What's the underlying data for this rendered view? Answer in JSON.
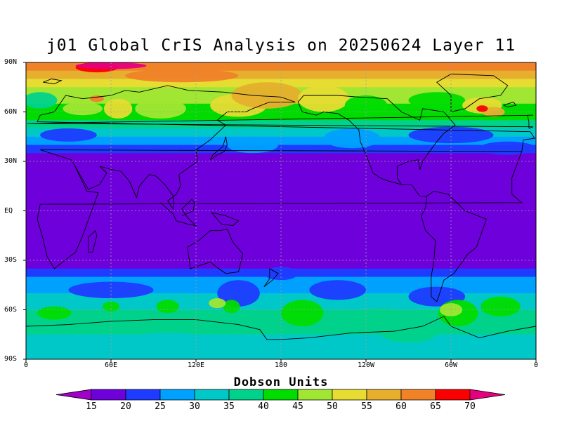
{
  "title": "j01 Global CrIS Analysis on 20250624 Layer 11",
  "lat_labels": [
    "90N",
    "60N",
    "30N",
    "EQ",
    "30S",
    "60S",
    "90S"
  ],
  "lon_labels": [
    "0",
    "60E",
    "120E",
    "180",
    "120W",
    "60W",
    "0"
  ],
  "colorbar": {
    "title": "Dobson Units",
    "ticks": [
      "15",
      "20",
      "25",
      "30",
      "35",
      "40",
      "45",
      "50",
      "55",
      "60",
      "65",
      "70"
    ],
    "colors": [
      "#a000c8",
      "#6e00dc",
      "#1e3cff",
      "#00a0ff",
      "#00c8c8",
      "#00d28c",
      "#00dc00",
      "#a0e632",
      "#e6dc32",
      "#e6af2d",
      "#f08228",
      "#fa0000",
      "#e6007d"
    ]
  },
  "chart_data": {
    "type": "heatmap",
    "title": "j01 Global CrIS Analysis on 20250624 Layer 11",
    "xlabel": "",
    "ylabel": "",
    "variable_label": "Dobson Units",
    "x_ticks": [
      "0",
      "60E",
      "120E",
      "180",
      "120W",
      "60W",
      "0"
    ],
    "y_ticks": [
      "90N",
      "60N",
      "30N",
      "EQ",
      "30S",
      "60S",
      "90S"
    ],
    "xlim": [
      0,
      360
    ],
    "ylim": [
      -90,
      90
    ],
    "levels": [
      15,
      20,
      25,
      30,
      35,
      40,
      45,
      50,
      55,
      60,
      65,
      70
    ],
    "grid": true,
    "zonal_profile": {
      "lat": [
        90,
        85,
        80,
        75,
        70,
        65,
        60,
        55,
        50,
        45,
        40,
        35,
        30,
        0,
        -30,
        -35,
        -40,
        -45,
        -50,
        -55,
        -60,
        -65,
        -70,
        -75,
        -80,
        -90
      ],
      "value": [
        62,
        57,
        50,
        47,
        45,
        44,
        42,
        36,
        30,
        26,
        22,
        19,
        17,
        16,
        17,
        21,
        26,
        29,
        31,
        34,
        36,
        36,
        35,
        33,
        32,
        32
      ]
    }
  }
}
